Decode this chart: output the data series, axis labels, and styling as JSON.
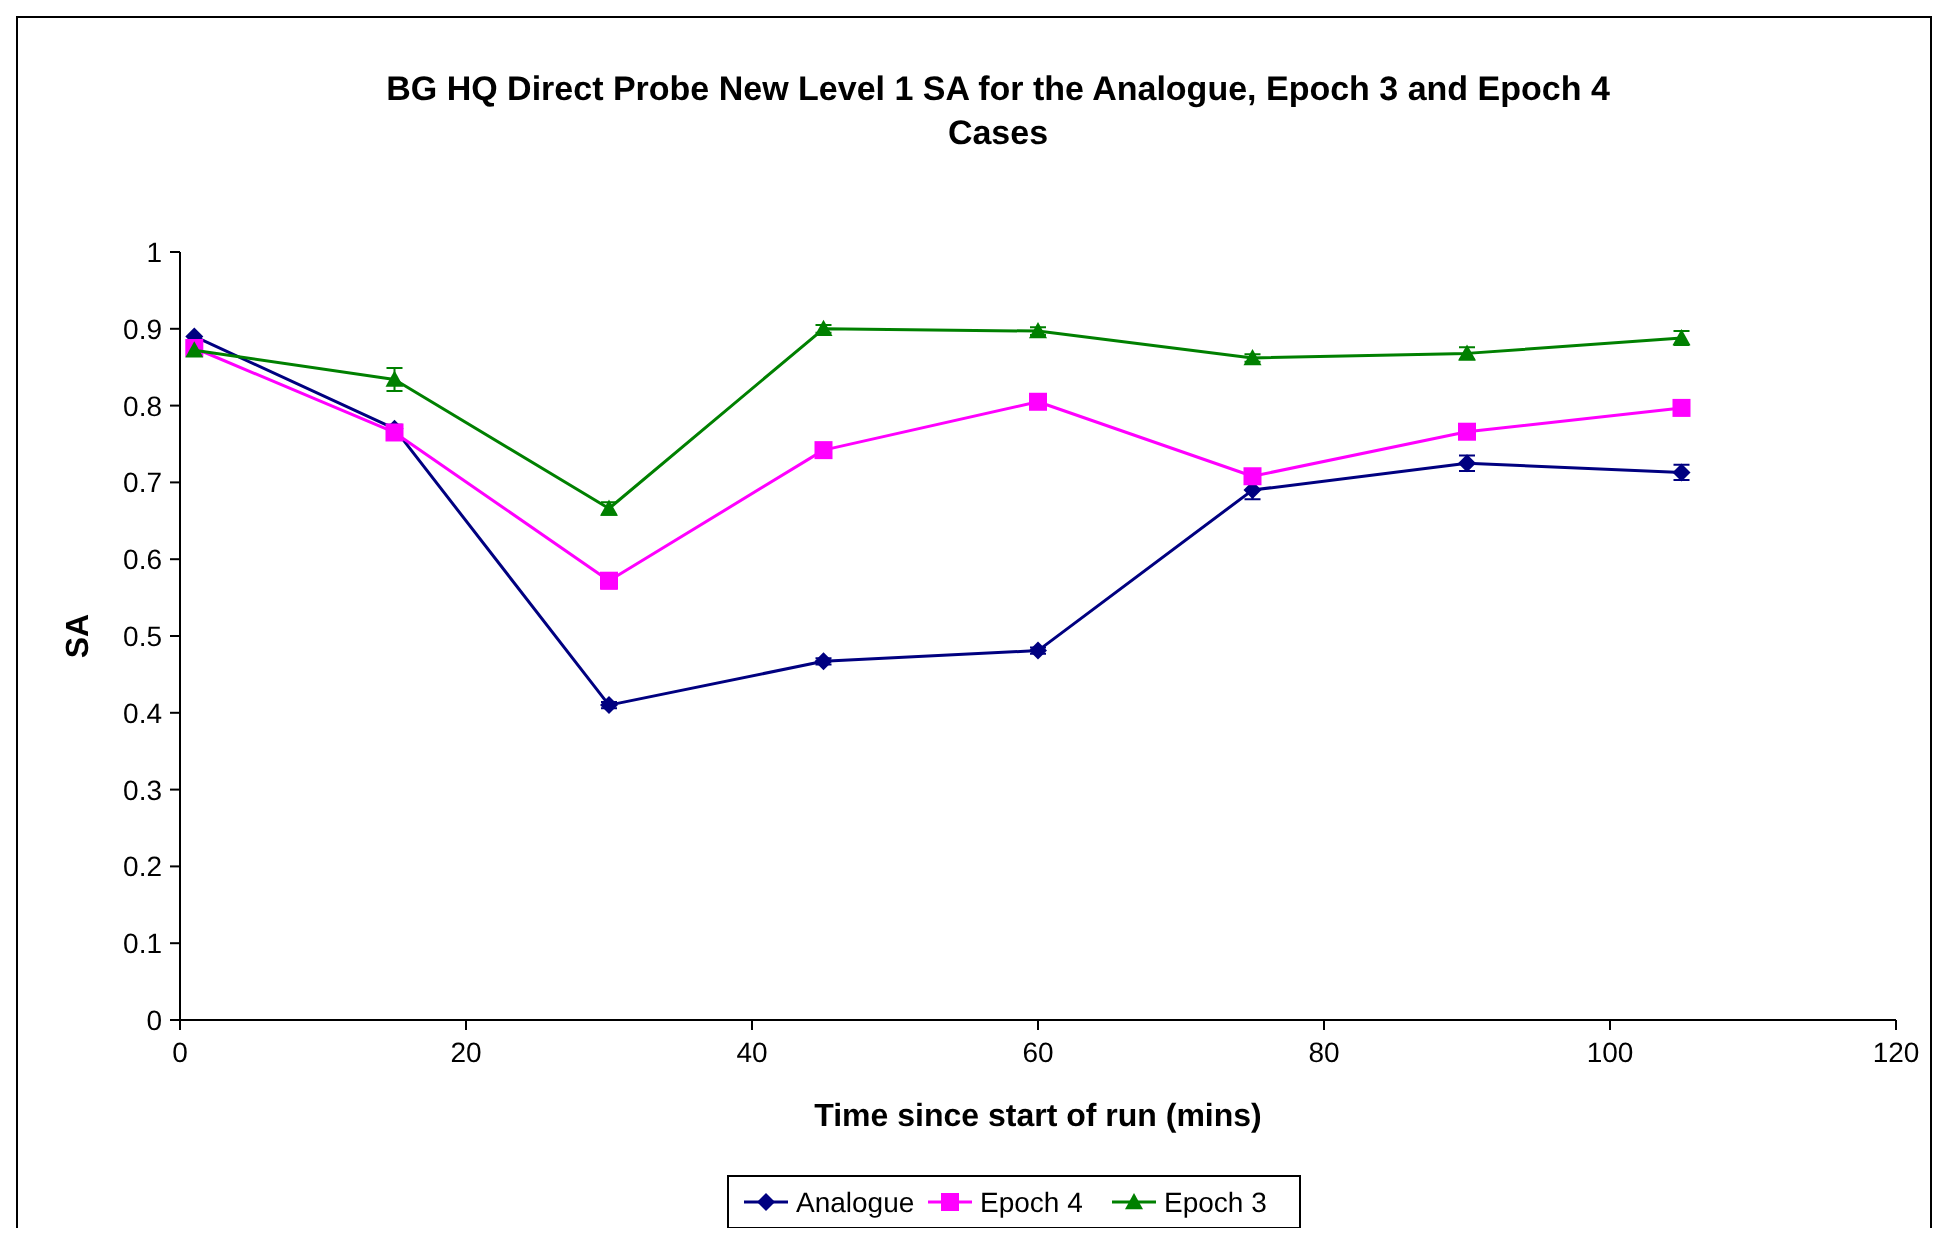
{
  "chart_data": {
    "type": "line",
    "title": "BG HQ Direct Probe New Level 1 SA for the Analogue, Epoch 3 and Epoch 4 Cases",
    "xlabel": "Time since start of run (mins)",
    "ylabel": "SA",
    "x": [
      1,
      15,
      30,
      45,
      60,
      75,
      90,
      105
    ],
    "xlim": [
      0,
      120
    ],
    "xticks": [
      0,
      20,
      40,
      60,
      80,
      100,
      120
    ],
    "ylim": [
      0,
      1
    ],
    "yticks": [
      0,
      0.1,
      0.2,
      0.3,
      0.4,
      0.5,
      0.6,
      0.7,
      0.8,
      0.9,
      1
    ],
    "grid": false,
    "legend": "bottom",
    "line_style": "solid",
    "series": [
      {
        "name": "Analogue",
        "color": "#000080",
        "marker": "diamond",
        "values": [
          0.89,
          0.77,
          0.41,
          0.467,
          0.481,
          0.69,
          0.725,
          0.713
        ],
        "errors": [
          null,
          0.005,
          0.004,
          0.004,
          0.004,
          0.012,
          0.01,
          0.01
        ]
      },
      {
        "name": "Epoch 4",
        "color": "#ff00ff",
        "marker": "square",
        "values": [
          0.875,
          0.765,
          0.572,
          0.742,
          0.805,
          0.708,
          0.766,
          0.797
        ],
        "errors": [
          null,
          0.008,
          0.01,
          0.005,
          0.005,
          0.005,
          0.005,
          0.006
        ]
      },
      {
        "name": "Epoch 3",
        "color": "#008000",
        "marker": "triangle",
        "values": [
          0.872,
          0.834,
          0.666,
          0.9,
          0.897,
          0.862,
          0.868,
          0.888
        ],
        "errors": [
          null,
          0.015,
          0.008,
          0.005,
          0.005,
          0.005,
          0.008,
          0.009
        ]
      }
    ]
  }
}
